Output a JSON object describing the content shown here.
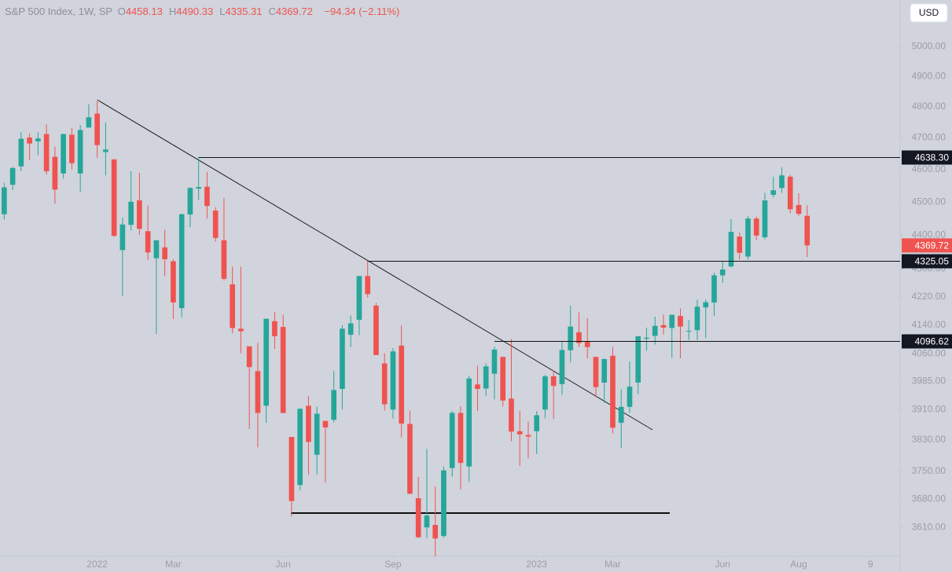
{
  "chart_data": {
    "type": "candlestick",
    "title": "S&P 500 Index, 1W, SP",
    "legend": [
      {
        "label": "O",
        "value": 4458.13
      },
      {
        "label": "H",
        "value": 4490.33
      },
      {
        "label": "L",
        "value": 4335.31
      },
      {
        "label": "C",
        "value": 4369.72
      }
    ],
    "change": "−94.34 (−2.11%)",
    "currency": "USD",
    "up_color": "#26a69a",
    "down_color": "#ef5350",
    "log_scale": true,
    "grid": false,
    "xlim": [
      -0.5,
      106
    ],
    "xticks": [
      {
        "value": 11,
        "label": "2022"
      },
      {
        "value": 20,
        "label": "Mar"
      },
      {
        "value": 33,
        "label": "Jun"
      },
      {
        "value": 46,
        "label": "Sep"
      },
      {
        "value": 63,
        "label": "2023"
      },
      {
        "value": 72,
        "label": "Mar"
      },
      {
        "value": 85,
        "label": "Jun"
      },
      {
        "value": 94,
        "label": "Aug"
      },
      {
        "value": 102.5,
        "label": "9"
      }
    ],
    "ylim": [
      3540,
      5160
    ],
    "yticks": [
      {
        "value": 5000,
        "label": "5000.00"
      },
      {
        "value": 4900,
        "label": "4900.00"
      },
      {
        "value": 4800,
        "label": "4800.00"
      },
      {
        "value": 4700,
        "label": "4700.00"
      },
      {
        "value": 4600,
        "label": "4600.00"
      },
      {
        "value": 4500,
        "label": "4500.00"
      },
      {
        "value": 4400,
        "label": "4400.00"
      },
      {
        "value": 4300,
        "label": "4300.00"
      },
      {
        "value": 4220,
        "label": "4220.00"
      },
      {
        "value": 4140,
        "label": "4140.00"
      },
      {
        "value": 4060,
        "label": "4060.00"
      },
      {
        "value": 3985,
        "label": "3985.00"
      },
      {
        "value": 3910,
        "label": "3910.00"
      },
      {
        "value": 3830,
        "label": "3830.00"
      },
      {
        "value": 3750,
        "label": "3750.00"
      },
      {
        "value": 3680,
        "label": "3680.00"
      },
      {
        "value": 3610,
        "label": "3610.00"
      }
    ],
    "levels": [
      {
        "value": 4638.3,
        "label": "4638.30"
      },
      {
        "value": 4325.05,
        "label": "4325.05"
      },
      {
        "value": 4096.62,
        "label": "4096.62"
      }
    ],
    "last_price": {
      "value": 4369.72,
      "label": "4369.72"
    },
    "open": [
      4463,
      4553,
      4610,
      4701,
      4689,
      4712,
      4640,
      4588,
      4710,
      4588,
      4733,
      4778,
      4655,
      4632,
      4356,
      4431,
      4505,
      4412,
      4332,
      4364,
      4323,
      4188,
      4462,
      4541,
      4547,
      4474,
      4385,
      4256,
      4130,
      4081,
      4013,
      3920,
      4151,
      4135,
      3838,
      3715,
      3920,
      3792,
      3880,
      3883,
      3965,
      4113,
      4155,
      4280,
      4195,
      4034,
      3910,
      4083,
      3872,
      3682,
      3610,
      3616,
      3589,
      3758,
      3901,
      3762,
      3977,
      3966,
      4006,
      4052,
      3939,
      3853,
      3843,
      3853,
      3910,
      3999,
      3978,
      4070,
      4120,
      4095,
      4052,
      3982,
      4055,
      3875,
      3917,
      3982,
      4102,
      4110,
      4140,
      4132,
      4166,
      4124,
      4126,
      4190,
      4204,
      4282,
      4308,
      4396,
      4337,
      4450,
      4394,
      4522,
      4543,
      4578,
      4491,
      4458.13
    ],
    "high": [
      4559,
      4608,
      4718,
      4714,
      4718,
      4743,
      4672,
      4713,
      4732,
      4741,
      4808,
      4818,
      4749,
      4632,
      4453,
      4595,
      4590,
      4490,
      4385,
      4416,
      4329,
      4465,
      4546,
      4637,
      4593,
      4484,
      4512,
      4308,
      4307,
      4081,
      4091,
      4158,
      4177,
      4169,
      3838,
      3913,
      3946,
      3918,
      3880,
      4013,
      4140,
      4167,
      4280,
      4325,
      4203,
      4062,
      4076,
      4139,
      3907,
      3736,
      3807,
      3712,
      3762,
      3906,
      3919,
      4001,
      4028,
      4034,
      4080,
      4052,
      4101,
      3906,
      3878,
      3906,
      4003,
      4015,
      4095,
      4195,
      4176,
      4160,
      4052,
      4048,
      4079,
      3964,
      4039,
      4110,
      4133,
      4164,
      4170,
      4170,
      4187,
      4154,
      4212,
      4212,
      4290,
      4322,
      4448,
      4408,
      4458,
      4456,
      4528,
      4578,
      4607,
      4584,
      4527,
      4490.33
    ],
    "low": [
      4447,
      4537,
      4595,
      4630,
      4645,
      4585,
      4495,
      4572,
      4600,
      4531,
      4733,
      4637,
      4582,
      4395,
      4222,
      4414,
      4401,
      4327,
      4115,
      4279,
      4157,
      4162,
      4424,
      4506,
      4450,
      4381,
      4267,
      4117,
      4062,
      3859,
      3811,
      3875,
      4074,
      3900,
      3637,
      3702,
      3741,
      3742,
      3721,
      3876,
      3910,
      4079,
      4112,
      4218,
      4057,
      3907,
      3886,
      3837,
      3693,
      3584,
      3584,
      3491,
      3585,
      3736,
      3704,
      3723,
      3906,
      3946,
      3937,
      3918,
      3827,
      3764,
      3783,
      3794,
      3887,
      3885,
      3949,
      4037,
      4079,
      4048,
      3943,
      3928,
      3847,
      3809,
      3901,
      3951,
      4069,
      4086,
      4114,
      4049,
      4048,
      4098,
      4098,
      4104,
      4166,
      4260,
      4305,
      4328,
      4328,
      4385,
      4388,
      4514,
      4528,
      4466,
      4458,
      4335.31
    ],
    "close": [
      4545,
      4605,
      4697,
      4682,
      4698,
      4595,
      4538,
      4712,
      4620,
      4725,
      4766,
      4677,
      4663,
      4398,
      4432,
      4501,
      4419,
      4349,
      4385,
      4329,
      4204,
      4463,
      4543,
      4546,
      4488,
      4392,
      4272,
      4132,
      4123,
      4024,
      3901,
      4158,
      4109,
      3901,
      3675,
      3912,
      3825,
      3899,
      3863,
      3962,
      4130,
      4145,
      4280,
      4228,
      4057,
      3924,
      4067,
      3873,
      3693,
      3586,
      3639,
      3583,
      3752,
      3901,
      3771,
      3993,
      3965,
      4026,
      4072,
      3934,
      3852,
      3845,
      3839,
      3895,
      3999,
      3973,
      4071,
      4136,
      4090,
      4079,
      3970,
      4046,
      3862,
      3917,
      3971,
      4109,
      4105,
      4138,
      4133,
      4169,
      4136,
      4124,
      4192,
      4205,
      4282,
      4299,
      4410,
      4348,
      4450,
      4399,
      4505,
      4536,
      4582,
      4478,
      4464,
      4369.72
    ]
  }
}
